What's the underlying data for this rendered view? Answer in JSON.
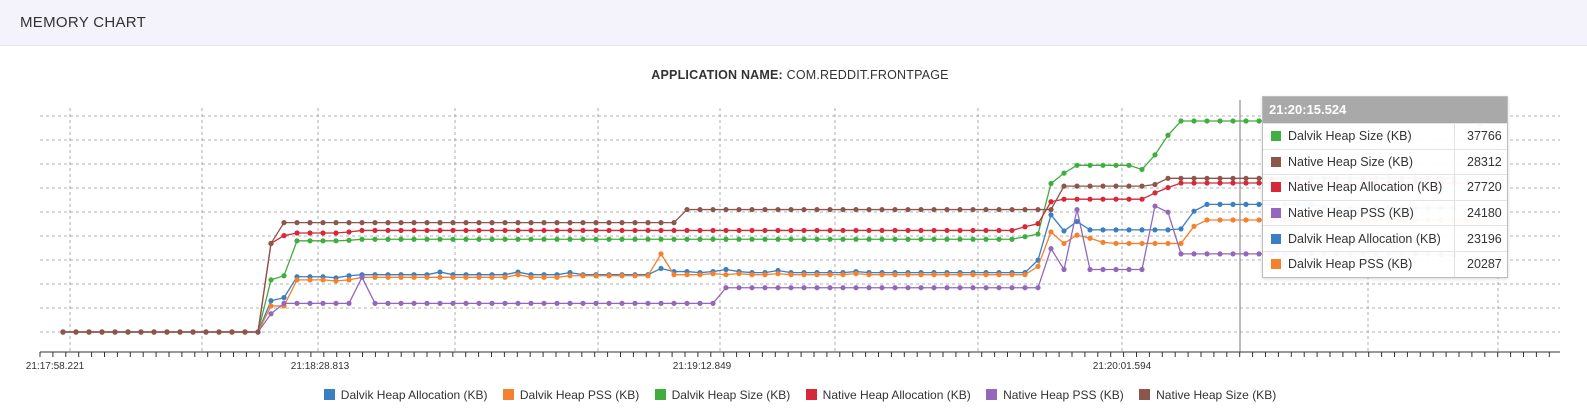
{
  "header": {
    "title": "MEMORY CHART"
  },
  "app": {
    "label": "APPLICATION NAME:",
    "name": "COM.REDDIT.FRONTPAGE"
  },
  "chart_data": {
    "type": "line",
    "grid": true,
    "legend_position": "bottom",
    "ylim": [
      0,
      43000
    ],
    "x_tick_labels": [
      "21:17:58.221",
      "21:18:28.813",
      "21:19:12.849",
      "21:20:01.594"
    ],
    "hover_time": "21:20:15.524",
    "series": [
      {
        "name": "Dalvik Heap Allocation (KB)",
        "color": "#3a7fc1",
        "values": [
          0,
          0,
          0,
          0,
          0,
          0,
          0,
          0,
          0,
          0,
          0,
          0,
          0,
          0,
          0,
          0,
          6000,
          6600,
          10600,
          10600,
          10600,
          10400,
          10800,
          11000,
          11000,
          11000,
          11000,
          11000,
          11000,
          11500,
          11000,
          11000,
          11000,
          11000,
          11000,
          11500,
          11000,
          11000,
          11000,
          11400,
          11000,
          11000,
          11000,
          11000,
          11000,
          11000,
          12200,
          11600,
          11600,
          11400,
          11600,
          12000,
          11600,
          11400,
          11400,
          11800,
          11400,
          11400,
          11400,
          11400,
          11400,
          11600,
          11400,
          11400,
          11400,
          11400,
          11400,
          11400,
          11400,
          11400,
          11400,
          11400,
          11400,
          11400,
          11400,
          13800,
          22500,
          19400,
          21200,
          19600,
          19600,
          19600,
          19600,
          19600,
          19600,
          19600,
          19800,
          23196,
          24500,
          24500,
          24500,
          24500,
          24500,
          24500,
          24500,
          24500,
          24500,
          23900,
          23800,
          23800,
          23800,
          23800,
          23800,
          23800,
          23800,
          23800,
          23800,
          23800
        ]
      },
      {
        "name": "Dalvik Heap PSS (KB)",
        "color": "#f4812e",
        "values": [
          0,
          0,
          0,
          0,
          0,
          0,
          0,
          0,
          0,
          0,
          0,
          0,
          0,
          0,
          0,
          0,
          5000,
          5000,
          10000,
          10000,
          10000,
          9800,
          10000,
          10500,
          10500,
          10500,
          10500,
          10500,
          10500,
          10500,
          10500,
          10500,
          10500,
          10500,
          10500,
          11000,
          10500,
          10500,
          10500,
          10800,
          10800,
          10800,
          10800,
          10800,
          10800,
          10800,
          15000,
          11000,
          11000,
          11000,
          11200,
          11000,
          11200,
          11000,
          11000,
          11200,
          11000,
          11000,
          11000,
          11000,
          11000,
          11200,
          11000,
          11000,
          11000,
          11000,
          11000,
          11000,
          11000,
          11000,
          11000,
          11000,
          11000,
          11000,
          11000,
          12600,
          19200,
          17000,
          18600,
          18000,
          17200,
          17000,
          17000,
          17000,
          17000,
          17000,
          17000,
          20287,
          21500,
          21500,
          21500,
          21500,
          21500,
          21500,
          21500,
          21500,
          21500,
          21500,
          21500,
          21500,
          21500,
          21500,
          21500,
          21500,
          21500,
          21500,
          21500,
          21500,
          21500,
          21000
        ]
      },
      {
        "name": "Dalvik Heap Size (KB)",
        "color": "#3fae3e",
        "values": [
          0,
          0,
          0,
          0,
          0,
          0,
          0,
          0,
          0,
          0,
          0,
          0,
          0,
          0,
          0,
          0,
          10000,
          10800,
          17500,
          17500,
          17500,
          17500,
          17600,
          17800,
          17800,
          17800,
          17800,
          17800,
          17800,
          17800,
          17800,
          17800,
          17800,
          17800,
          17800,
          17800,
          17800,
          17800,
          17800,
          17800,
          17800,
          17800,
          17800,
          17800,
          17800,
          17800,
          17800,
          17800,
          17800,
          17800,
          17800,
          17800,
          17800,
          17800,
          17800,
          17800,
          17800,
          17800,
          17800,
          17800,
          17800,
          17800,
          17800,
          17800,
          17800,
          17800,
          17800,
          17800,
          17800,
          17800,
          17800,
          17800,
          17800,
          17800,
          18300,
          18800,
          28500,
          30500,
          32000,
          32000,
          32000,
          32000,
          32000,
          31200,
          34000,
          37766,
          40500,
          40500,
          40500,
          40500,
          40500,
          40500,
          40500,
          40500,
          40500,
          40500,
          40500,
          40500,
          40500,
          40500,
          40500,
          40500,
          40500,
          40500,
          40500,
          40500,
          40500,
          40500,
          40500,
          40000
        ]
      },
      {
        "name": "Native Heap Allocation (KB)",
        "color": "#d62839",
        "values": [
          0,
          0,
          0,
          0,
          0,
          0,
          0,
          0,
          0,
          0,
          0,
          0,
          0,
          0,
          0,
          0,
          17000,
          18500,
          19000,
          19000,
          19000,
          19000,
          19200,
          19500,
          19500,
          19500,
          19500,
          19500,
          19500,
          19500,
          19500,
          19500,
          19500,
          19500,
          19500,
          19500,
          19500,
          19500,
          19500,
          19500,
          19500,
          19500,
          19500,
          19500,
          19500,
          19500,
          19500,
          19500,
          19500,
          19500,
          19500,
          19500,
          19500,
          19500,
          19500,
          19500,
          19500,
          19500,
          19500,
          19500,
          19500,
          19500,
          19500,
          19500,
          19500,
          19500,
          19500,
          19500,
          19500,
          19500,
          19500,
          19500,
          19500,
          19500,
          20200,
          20800,
          25000,
          25500,
          25500,
          25500,
          25500,
          25500,
          25500,
          25500,
          26700,
          27720,
          28600,
          28600,
          28600,
          28600,
          28600,
          28600,
          28600,
          28600,
          28600,
          28600,
          28600,
          28600,
          28600,
          28600,
          28600,
          28600,
          28600,
          28600,
          28600,
          28600,
          28600,
          28600,
          28600
        ]
      },
      {
        "name": "Native Heap PSS (KB)",
        "color": "#9467bd",
        "values": [
          0,
          0,
          0,
          0,
          0,
          0,
          0,
          0,
          0,
          0,
          0,
          0,
          0,
          0,
          0,
          0,
          3500,
          5500,
          5500,
          5500,
          5500,
          5500,
          5500,
          10500,
          5500,
          5500,
          5500,
          5500,
          5500,
          5500,
          5500,
          5500,
          5500,
          5500,
          5500,
          5500,
          5500,
          5500,
          5500,
          5500,
          5500,
          5500,
          5500,
          5500,
          5500,
          5500,
          5500,
          5500,
          5500,
          5500,
          5500,
          8500,
          8500,
          8500,
          8500,
          8500,
          8500,
          8500,
          8500,
          8500,
          8500,
          8500,
          8500,
          8500,
          8500,
          8500,
          8500,
          8500,
          8500,
          8500,
          8500,
          8500,
          8500,
          8500,
          8500,
          8500,
          16000,
          12000,
          23500,
          12000,
          12000,
          12000,
          12000,
          12000,
          24180,
          23000,
          15000,
          15000,
          15000,
          15000,
          15000,
          15000,
          15000,
          15000,
          15000,
          15000,
          15000,
          15000,
          15000,
          15000,
          15000,
          15000,
          15000,
          15000,
          15000,
          15000,
          14800,
          14800
        ]
      },
      {
        "name": "Native Heap Size (KB)",
        "color": "#8c564b",
        "values": [
          0,
          0,
          0,
          0,
          0,
          0,
          0,
          0,
          0,
          0,
          0,
          0,
          0,
          0,
          0,
          0,
          17000,
          21000,
          21000,
          21000,
          21000,
          21000,
          21000,
          21000,
          21000,
          21000,
          21000,
          21000,
          21000,
          21000,
          21000,
          21000,
          21000,
          21000,
          21000,
          21000,
          21000,
          21000,
          21000,
          21000,
          21000,
          21000,
          21000,
          21000,
          21000,
          21000,
          21000,
          21000,
          23500,
          23500,
          23500,
          23500,
          23500,
          23500,
          23500,
          23500,
          23500,
          23500,
          23500,
          23500,
          23500,
          23500,
          23500,
          23500,
          23500,
          23500,
          23500,
          23500,
          23500,
          23500,
          23500,
          23500,
          23500,
          23500,
          23500,
          23500,
          23500,
          28000,
          28000,
          28000,
          28000,
          28000,
          28000,
          28000,
          28312,
          29500,
          29500,
          29500,
          29500,
          29500,
          29500,
          29500,
          29500,
          29500,
          29500,
          29500,
          29500,
          29500,
          29500,
          29500,
          29500,
          29500,
          29500,
          29500,
          29500,
          29500,
          29500,
          29500
        ]
      }
    ]
  },
  "tooltip": {
    "time": "21:20:15.524",
    "rows": [
      {
        "name": "Dalvik Heap Size (KB)",
        "value": "37766",
        "color": "#3fae3e"
      },
      {
        "name": "Native Heap Size (KB)",
        "value": "28312",
        "color": "#8c564b"
      },
      {
        "name": "Native Heap Allocation (KB)",
        "value": "27720",
        "color": "#d62839"
      },
      {
        "name": "Native Heap PSS (KB)",
        "value": "24180",
        "color": "#9467bd"
      },
      {
        "name": "Dalvik Heap Allocation (KB)",
        "value": "23196",
        "color": "#3a7fc1"
      },
      {
        "name": "Dalvik Heap PSS (KB)",
        "value": "20287",
        "color": "#f4812e"
      }
    ]
  }
}
